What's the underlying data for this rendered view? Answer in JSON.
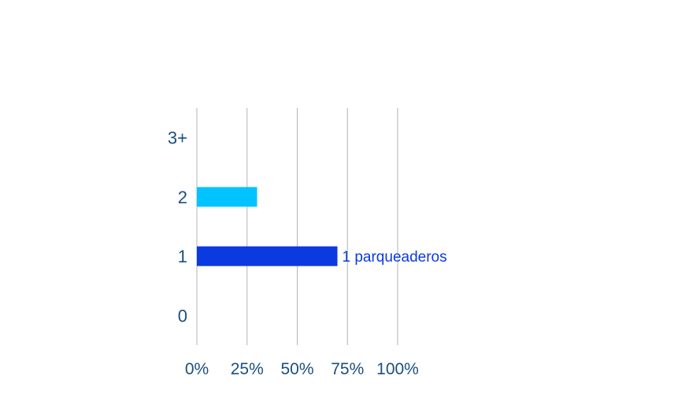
{
  "chart_data": {
    "type": "bar",
    "orientation": "horizontal",
    "categories": [
      "3+",
      "2",
      "1",
      "0"
    ],
    "values": [
      0,
      30,
      70,
      0
    ],
    "bar_colors": [
      "#00c3ff",
      "#00c3ff",
      "#0a3ae0",
      "#00c3ff"
    ],
    "data_labels": [
      "",
      "",
      "1 parqueaderos",
      ""
    ],
    "x_ticks": [
      "0%",
      "25%",
      "50%",
      "75%",
      "100%"
    ],
    "xlim": [
      0,
      100
    ],
    "grid": true,
    "title": "",
    "xlabel": "",
    "ylabel": ""
  }
}
